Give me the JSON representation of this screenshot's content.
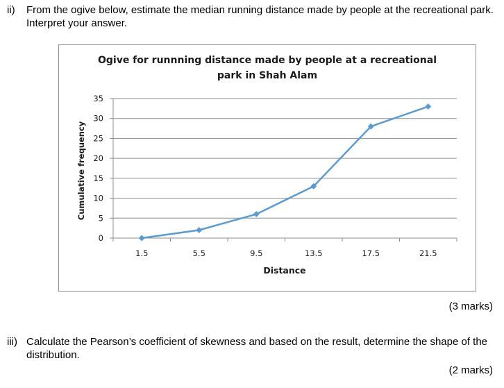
{
  "question2": {
    "number": "ii)",
    "text": "From the ogive below, estimate the median running distance made by people at the recreational park. Interpret your answer.",
    "marks": "(3 marks)"
  },
  "question3": {
    "number": "iii)",
    "text": "Calculate the Pearson’s coefficient of skewness and based on the result, determine the shape of the distribution.",
    "marks": "(2 marks)"
  },
  "chart_data": {
    "type": "line",
    "title_line1": "Ogive for runnning distance made by people at a recreational",
    "title_line2": "park in Shah Alam",
    "xlabel": "Distance",
    "ylabel": "Cumulative frequency",
    "categories": [
      "1.5",
      "5.5",
      "9.5",
      "13.5",
      "17.5",
      "21.5"
    ],
    "values": [
      0,
      2,
      6,
      13,
      28,
      33
    ],
    "ylim": [
      0,
      35
    ],
    "yticks": [
      0,
      5,
      10,
      15,
      20,
      25,
      30,
      35
    ],
    "grid": true,
    "series_color": "#5b9bd5"
  }
}
